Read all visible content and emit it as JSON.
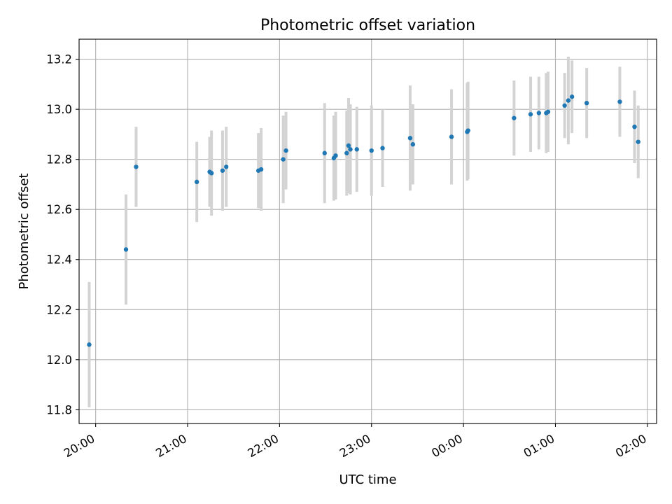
{
  "chart_data": {
    "type": "scatter",
    "title": "Photometric offset variation",
    "xlabel": "UTC time",
    "ylabel": "Photometric offset",
    "x_unit": "UTC time (hours, continuing past midnight)",
    "xlim": [
      19.82,
      26.1
    ],
    "ylim": [
      11.745,
      13.28
    ],
    "grid": true,
    "x_ticks": [
      {
        "value": 20,
        "label": "20:00"
      },
      {
        "value": 21,
        "label": "21:00"
      },
      {
        "value": 22,
        "label": "22:00"
      },
      {
        "value": 23,
        "label": "23:00"
      },
      {
        "value": 24,
        "label": "00:00"
      },
      {
        "value": 25,
        "label": "01:00"
      },
      {
        "value": 26,
        "label": "02:00"
      }
    ],
    "y_ticks": [
      {
        "value": 11.8,
        "label": "11.8"
      },
      {
        "value": 12.0,
        "label": "12.0"
      },
      {
        "value": 12.2,
        "label": "12.2"
      },
      {
        "value": 12.4,
        "label": "12.4"
      },
      {
        "value": 12.6,
        "label": "12.6"
      },
      {
        "value": 12.8,
        "label": "12.8"
      },
      {
        "value": 13.0,
        "label": "13.0"
      },
      {
        "value": 13.2,
        "label": "13.2"
      }
    ],
    "colors": {
      "point": "#1f77b4",
      "errorbar": "#d3d3d3",
      "grid": "#b0b0b0"
    },
    "points": [
      {
        "x": 19.93,
        "y": 12.06,
        "err": 0.25
      },
      {
        "x": 20.33,
        "y": 12.44,
        "err": 0.22
      },
      {
        "x": 20.44,
        "y": 12.77,
        "err": 0.16
      },
      {
        "x": 21.1,
        "y": 12.71,
        "err": 0.16
      },
      {
        "x": 21.24,
        "y": 12.75,
        "err": 0.14
      },
      {
        "x": 21.26,
        "y": 12.745,
        "err": 0.17
      },
      {
        "x": 21.38,
        "y": 12.755,
        "err": 0.16
      },
      {
        "x": 21.42,
        "y": 12.77,
        "err": 0.16
      },
      {
        "x": 21.77,
        "y": 12.755,
        "err": 0.15
      },
      {
        "x": 21.8,
        "y": 12.76,
        "err": 0.165
      },
      {
        "x": 22.04,
        "y": 12.8,
        "err": 0.175
      },
      {
        "x": 22.07,
        "y": 12.835,
        "err": 0.155
      },
      {
        "x": 22.49,
        "y": 12.825,
        "err": 0.2
      },
      {
        "x": 22.59,
        "y": 12.805,
        "err": 0.17
      },
      {
        "x": 22.61,
        "y": 12.815,
        "err": 0.175
      },
      {
        "x": 22.73,
        "y": 12.825,
        "err": 0.17
      },
      {
        "x": 22.75,
        "y": 12.855,
        "err": 0.19
      },
      {
        "x": 22.77,
        "y": 12.84,
        "err": 0.18
      },
      {
        "x": 22.84,
        "y": 12.84,
        "err": 0.17
      },
      {
        "x": 23.0,
        "y": 12.835,
        "err": 0.18
      },
      {
        "x": 23.12,
        "y": 12.845,
        "err": 0.155
      },
      {
        "x": 23.42,
        "y": 12.885,
        "err": 0.21
      },
      {
        "x": 23.45,
        "y": 12.86,
        "err": 0.16
      },
      {
        "x": 23.87,
        "y": 12.89,
        "err": 0.19
      },
      {
        "x": 24.04,
        "y": 12.91,
        "err": 0.195
      },
      {
        "x": 24.05,
        "y": 12.915,
        "err": 0.195
      },
      {
        "x": 24.55,
        "y": 12.965,
        "err": 0.15
      },
      {
        "x": 24.73,
        "y": 12.98,
        "err": 0.15
      },
      {
        "x": 24.82,
        "y": 12.985,
        "err": 0.145
      },
      {
        "x": 24.9,
        "y": 12.985,
        "err": 0.16
      },
      {
        "x": 24.92,
        "y": 12.99,
        "err": 0.16
      },
      {
        "x": 25.1,
        "y": 13.015,
        "err": 0.13
      },
      {
        "x": 25.14,
        "y": 13.035,
        "err": 0.175
      },
      {
        "x": 25.18,
        "y": 13.05,
        "err": 0.145
      },
      {
        "x": 25.34,
        "y": 13.025,
        "err": 0.14
      },
      {
        "x": 25.7,
        "y": 13.03,
        "err": 0.14
      },
      {
        "x": 25.86,
        "y": 12.93,
        "err": 0.145
      },
      {
        "x": 25.9,
        "y": 12.87,
        "err": 0.145
      }
    ]
  }
}
